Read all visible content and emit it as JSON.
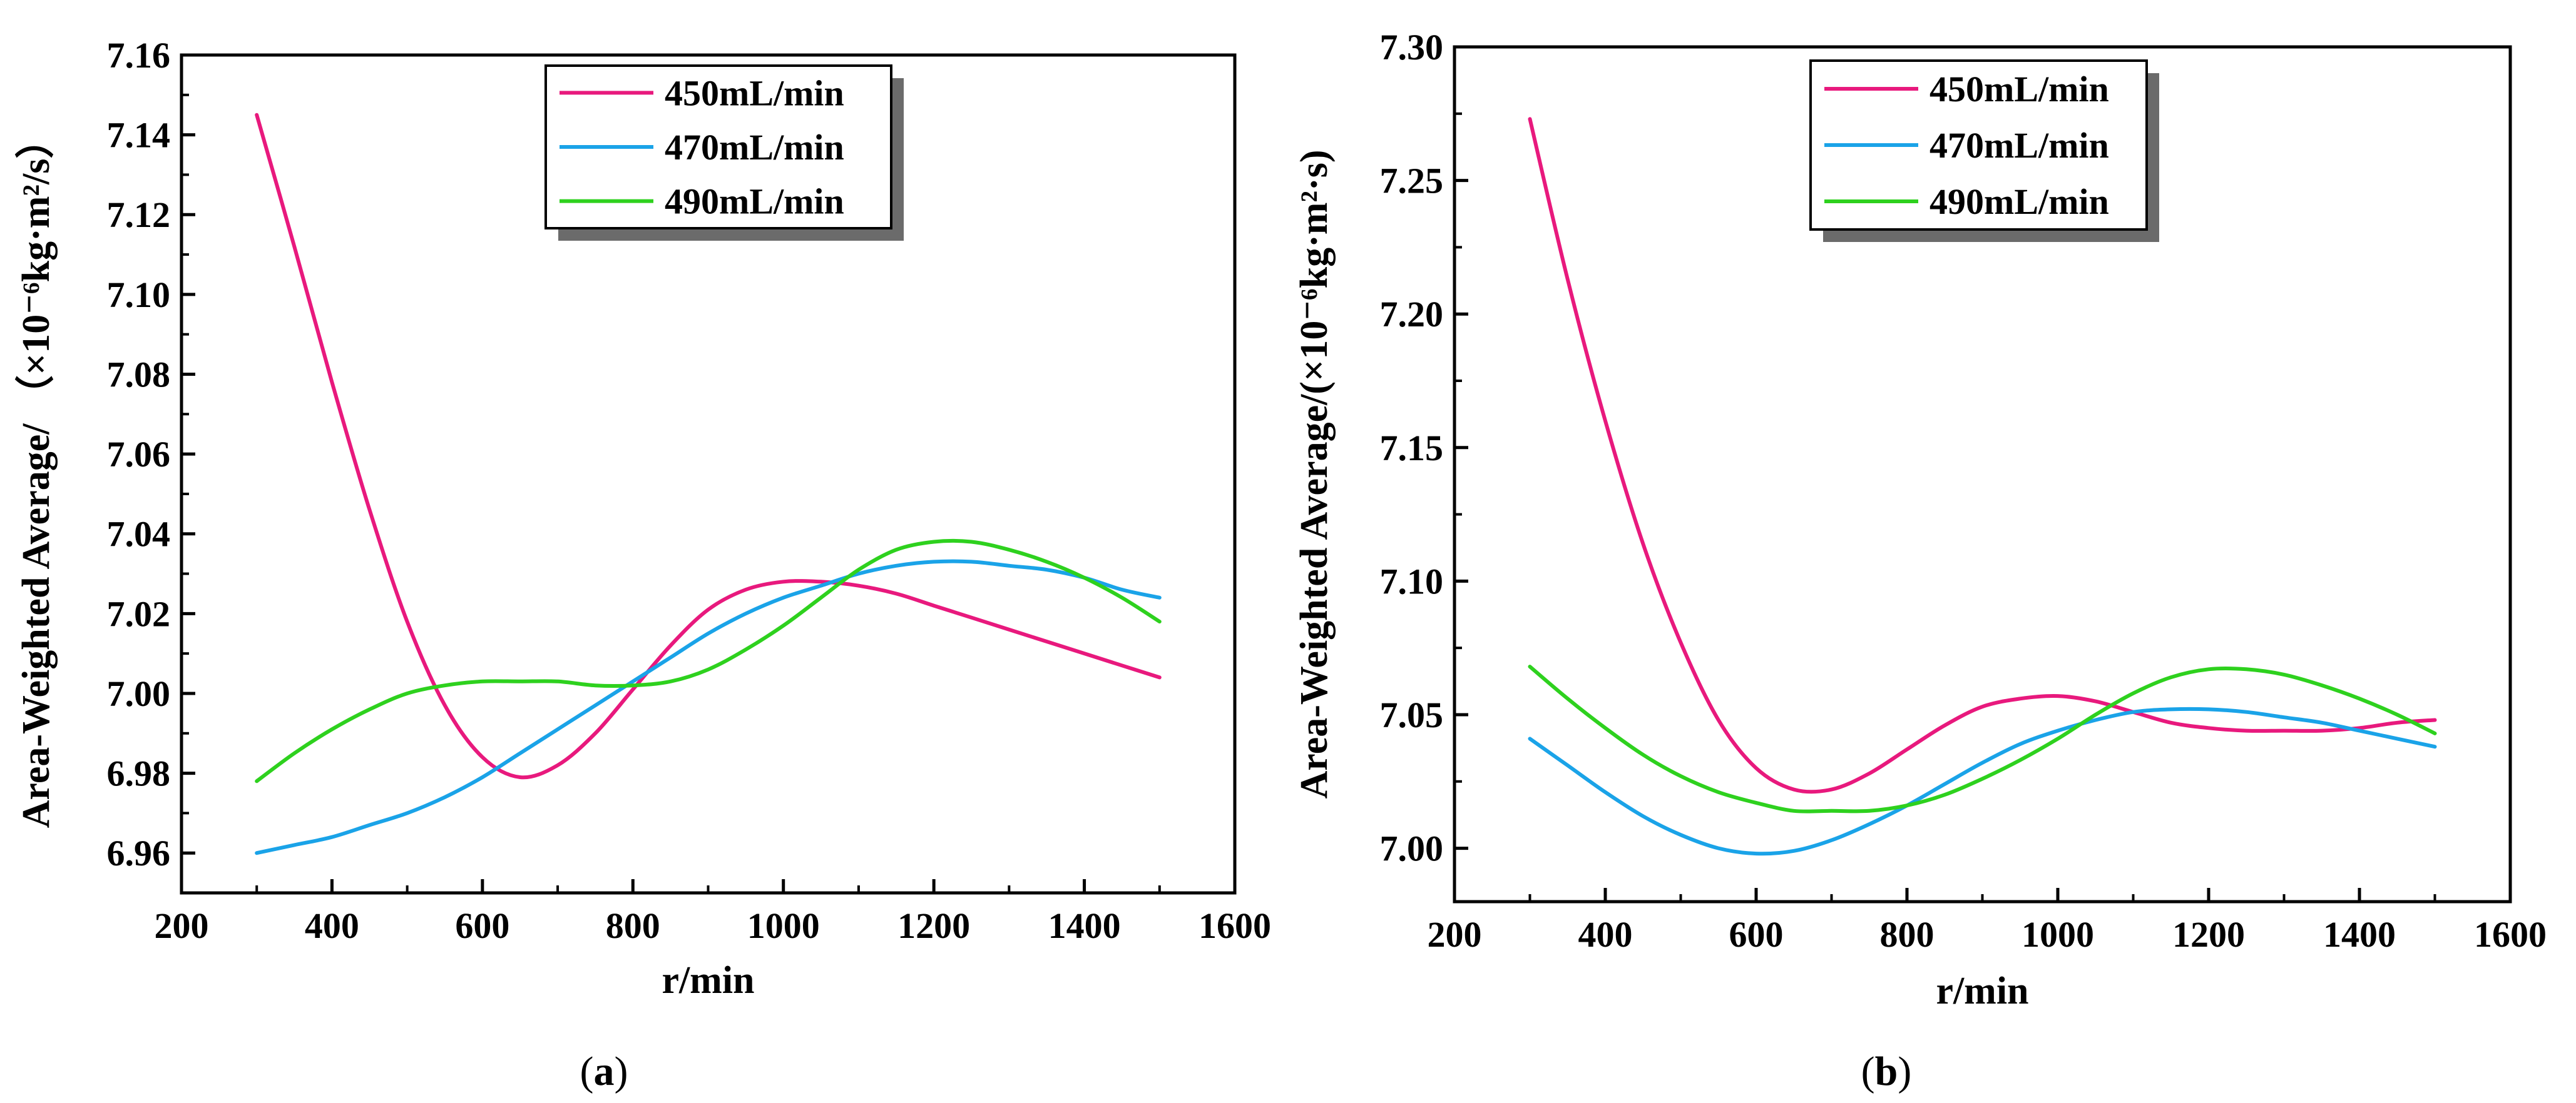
{
  "chart_data": [
    {
      "type": "line",
      "panel_label": "a",
      "xlabel": "r/min",
      "ylabel": "Area-Weighted Average/ （×10⁻⁶kg·m²/s）",
      "xlim": [
        200,
        1600
      ],
      "ylim": [
        6.95,
        7.16
      ],
      "xticks": [
        200,
        400,
        600,
        800,
        1000,
        1200,
        1400,
        1600
      ],
      "yticks": [
        6.96,
        6.98,
        7.0,
        7.02,
        7.04,
        7.06,
        7.08,
        7.1,
        7.12,
        7.14,
        7.16
      ],
      "ytick_decimals": 2,
      "legend_position": "top-center",
      "series": [
        {
          "name": "450mL/min",
          "color": "#e8197d",
          "x": [
            300,
            350,
            400,
            450,
            500,
            550,
            600,
            650,
            700,
            750,
            800,
            850,
            900,
            950,
            1000,
            1050,
            1100,
            1150,
            1200,
            1250,
            1300,
            1350,
            1400,
            1450,
            1500
          ],
          "y": [
            7.145,
            7.112,
            7.078,
            7.046,
            7.018,
            6.997,
            6.984,
            6.979,
            6.982,
            6.99,
            7.001,
            7.012,
            7.021,
            7.026,
            7.028,
            7.028,
            7.027,
            7.025,
            7.022,
            7.019,
            7.016,
            7.013,
            7.01,
            7.007,
            7.004
          ]
        },
        {
          "name": "470mL/min",
          "color": "#1aa3e8",
          "x": [
            300,
            350,
            400,
            450,
            500,
            550,
            600,
            650,
            700,
            750,
            800,
            850,
            900,
            950,
            1000,
            1050,
            1100,
            1150,
            1200,
            1250,
            1300,
            1350,
            1400,
            1450,
            1500
          ],
          "y": [
            6.96,
            6.962,
            6.964,
            6.967,
            6.97,
            6.974,
            6.979,
            6.985,
            6.991,
            6.997,
            7.003,
            7.009,
            7.015,
            7.02,
            7.024,
            7.027,
            7.03,
            7.032,
            7.033,
            7.033,
            7.032,
            7.031,
            7.029,
            7.026,
            7.024
          ]
        },
        {
          "name": "490mL/min",
          "color": "#2ed11e",
          "x": [
            300,
            350,
            400,
            450,
            500,
            550,
            600,
            650,
            700,
            750,
            800,
            850,
            900,
            950,
            1000,
            1050,
            1100,
            1150,
            1200,
            1250,
            1300,
            1350,
            1400,
            1450,
            1500
          ],
          "y": [
            6.978,
            6.985,
            6.991,
            6.996,
            7.0,
            7.002,
            7.003,
            7.003,
            7.003,
            7.002,
            7.002,
            7.003,
            7.006,
            7.011,
            7.017,
            7.024,
            7.031,
            7.036,
            7.038,
            7.038,
            7.036,
            7.033,
            7.029,
            7.024,
            7.018
          ]
        }
      ]
    },
    {
      "type": "line",
      "panel_label": "b",
      "xlabel": "r/min",
      "ylabel": "Area-Weighted Average/(×10⁻⁶kg·m²·s)",
      "xlim": [
        200,
        1600
      ],
      "ylim": [
        6.98,
        7.3
      ],
      "xticks": [
        200,
        400,
        600,
        800,
        1000,
        1200,
        1400,
        1600
      ],
      "yticks": [
        7.0,
        7.05,
        7.1,
        7.15,
        7.2,
        7.25,
        7.3
      ],
      "ytick_decimals": 2,
      "legend_position": "top-center",
      "series": [
        {
          "name": "450mL/min",
          "color": "#e8197d",
          "x": [
            300,
            350,
            400,
            450,
            500,
            550,
            600,
            650,
            700,
            750,
            800,
            850,
            900,
            950,
            1000,
            1050,
            1100,
            1150,
            1200,
            1250,
            1300,
            1350,
            1400,
            1450,
            1500
          ],
          "y": [
            7.273,
            7.213,
            7.16,
            7.114,
            7.077,
            7.048,
            7.03,
            7.022,
            7.022,
            7.028,
            7.037,
            7.046,
            7.053,
            7.056,
            7.057,
            7.055,
            7.051,
            7.047,
            7.045,
            7.044,
            7.044,
            7.044,
            7.045,
            7.047,
            7.048
          ]
        },
        {
          "name": "470mL/min",
          "color": "#1aa3e8",
          "x": [
            300,
            350,
            400,
            450,
            500,
            550,
            600,
            650,
            700,
            750,
            800,
            850,
            900,
            950,
            1000,
            1050,
            1100,
            1150,
            1200,
            1250,
            1300,
            1350,
            1400,
            1450,
            1500
          ],
          "y": [
            7.041,
            7.031,
            7.021,
            7.012,
            7.005,
            7.0,
            6.998,
            6.999,
            7.003,
            7.009,
            7.016,
            7.024,
            7.032,
            7.039,
            7.044,
            7.048,
            7.051,
            7.052,
            7.052,
            7.051,
            7.049,
            7.047,
            7.044,
            7.041,
            7.038
          ]
        },
        {
          "name": "490mL/min",
          "color": "#2ed11e",
          "x": [
            300,
            350,
            400,
            450,
            500,
            550,
            600,
            650,
            700,
            750,
            800,
            850,
            900,
            950,
            1000,
            1050,
            1100,
            1150,
            1200,
            1250,
            1300,
            1350,
            1400,
            1450,
            1500
          ],
          "y": [
            7.068,
            7.056,
            7.045,
            7.035,
            7.027,
            7.021,
            7.017,
            7.014,
            7.014,
            7.014,
            7.016,
            7.02,
            7.026,
            7.033,
            7.041,
            7.05,
            7.058,
            7.064,
            7.067,
            7.067,
            7.065,
            7.061,
            7.056,
            7.05,
            7.043
          ]
        }
      ]
    }
  ]
}
